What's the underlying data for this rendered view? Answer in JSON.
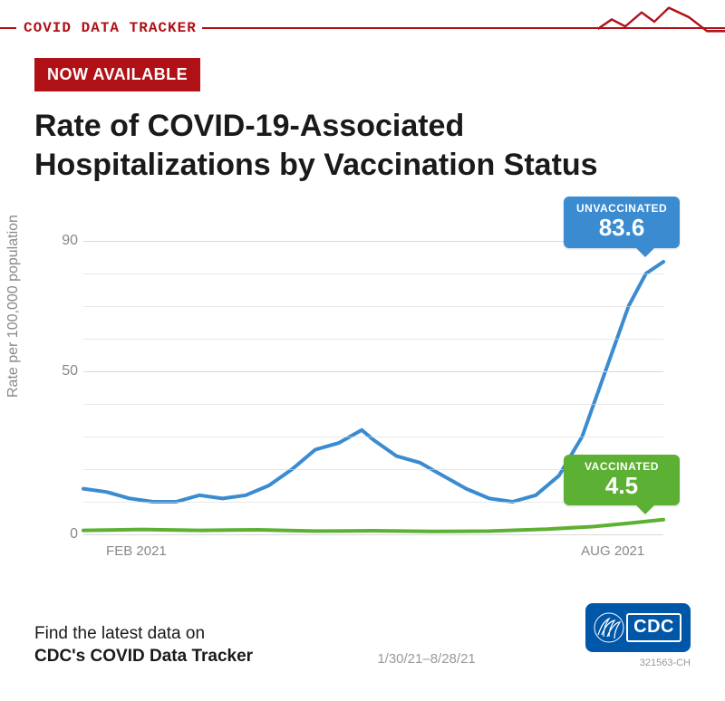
{
  "header": {
    "tracker_label": "COVID DATA TRACKER",
    "bar_color": "#b01116",
    "sparkline": {
      "points": [
        0,
        20,
        15,
        12,
        30,
        18,
        48,
        6,
        62,
        14,
        78,
        2,
        100,
        10,
        120,
        22,
        140,
        22
      ],
      "stroke": "#b01116",
      "stroke_width": 2
    }
  },
  "badge": {
    "text": "NOW AVAILABLE",
    "bg": "#b01116",
    "fg": "#ffffff"
  },
  "title": "Rate of COVID-19-Associated Hospitalizations by Vaccination Status",
  "chart": {
    "type": "line",
    "background_color": "#ffffff",
    "grid_color": "#d9d9d9",
    "axis_color": "#888888",
    "ylabel": "Rate per 100,000 population",
    "label_fontsize": 16,
    "ylim": [
      0,
      100
    ],
    "yticks": [
      0,
      50,
      90
    ],
    "xticks": [
      {
        "label": "FEB 2021",
        "pos": 0.06
      },
      {
        "label": "AUG 2021",
        "pos": 0.88
      }
    ],
    "series": {
      "unvaccinated": {
        "color": "#3b8bd0",
        "stroke_width": 4,
        "callout": {
          "label": "UNVACCINATED",
          "value": "83.6",
          "bg": "#3b8bd0"
        },
        "points": [
          [
            0.0,
            14
          ],
          [
            0.04,
            13
          ],
          [
            0.08,
            11
          ],
          [
            0.12,
            10
          ],
          [
            0.16,
            10
          ],
          [
            0.2,
            12
          ],
          [
            0.24,
            11
          ],
          [
            0.28,
            12
          ],
          [
            0.32,
            15
          ],
          [
            0.36,
            20
          ],
          [
            0.4,
            26
          ],
          [
            0.44,
            28
          ],
          [
            0.48,
            32
          ],
          [
            0.5,
            29
          ],
          [
            0.54,
            24
          ],
          [
            0.58,
            22
          ],
          [
            0.62,
            18
          ],
          [
            0.66,
            14
          ],
          [
            0.7,
            11
          ],
          [
            0.74,
            10
          ],
          [
            0.78,
            12
          ],
          [
            0.82,
            18
          ],
          [
            0.86,
            30
          ],
          [
            0.9,
            50
          ],
          [
            0.94,
            70
          ],
          [
            0.97,
            80
          ],
          [
            1.0,
            83.6
          ]
        ]
      },
      "vaccinated": {
        "color": "#5cb033",
        "stroke_width": 4,
        "callout": {
          "label": "VACCINATED",
          "value": "4.5",
          "bg": "#5cb033"
        },
        "points": [
          [
            0.0,
            1.2
          ],
          [
            0.1,
            1.5
          ],
          [
            0.2,
            1.2
          ],
          [
            0.3,
            1.4
          ],
          [
            0.4,
            1.0
          ],
          [
            0.5,
            1.1
          ],
          [
            0.6,
            0.9
          ],
          [
            0.7,
            1.0
          ],
          [
            0.8,
            1.6
          ],
          [
            0.88,
            2.4
          ],
          [
            0.94,
            3.4
          ],
          [
            1.0,
            4.5
          ]
        ]
      }
    }
  },
  "footer": {
    "line1": "Find the latest data on",
    "line2": "CDC's COVID Data Tracker",
    "date_range": "1/30/21–8/28/21",
    "cdc_text": "CDC",
    "doc_id": "321563-CH",
    "cdc_bg": "#0057a8"
  }
}
